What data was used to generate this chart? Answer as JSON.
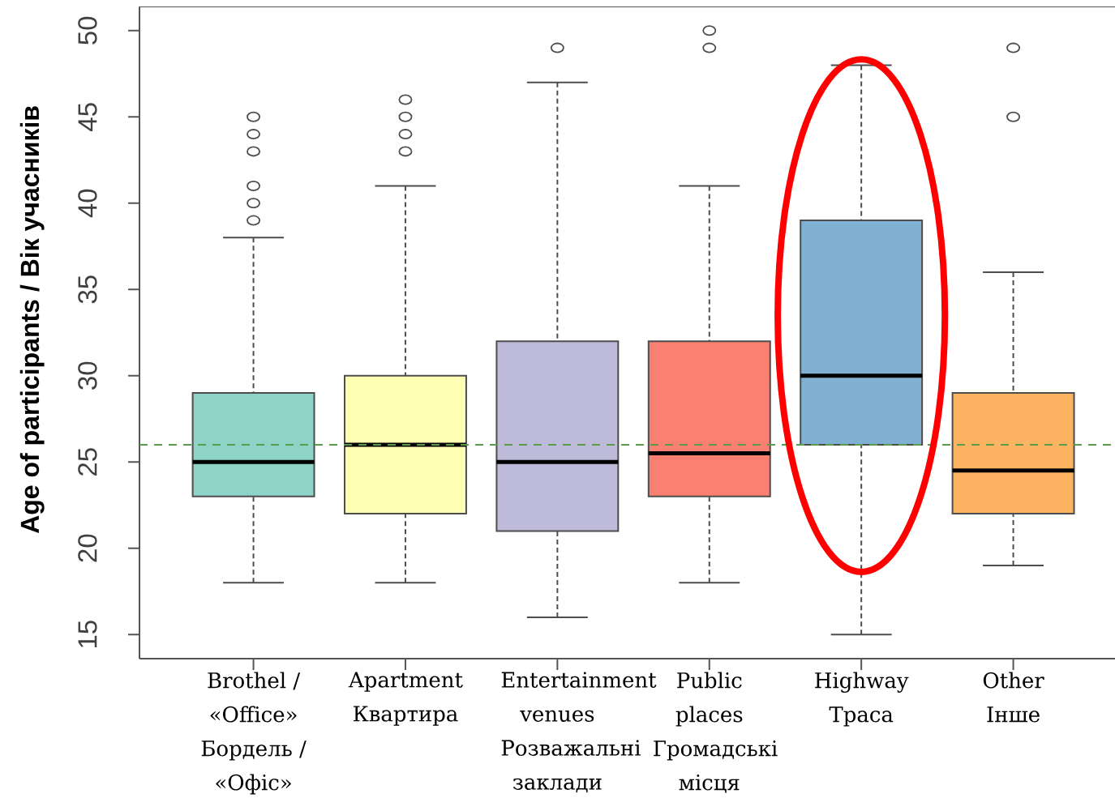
{
  "chart_data": {
    "type": "box",
    "ylabel": "Age of participants / Вік учасників",
    "categories": [
      "Brothel / «Office» Бордель / «Офіс»",
      "Apartment Квартира",
      "Entertainment venues Розважальні заклади",
      "Public places Громадські місця",
      "Highway Траса",
      "Other Інше"
    ],
    "colors": [
      "#8dd3c7",
      "#ffffb3",
      "#bebada",
      "#fb8072",
      "#80b1d3",
      "#fdb462"
    ],
    "boxes": [
      {
        "low": 18,
        "q1": 23,
        "median": 25,
        "q3": 29,
        "high": 38,
        "outliers": [
          39,
          40,
          41,
          43,
          44,
          45
        ]
      },
      {
        "low": 18,
        "q1": 22,
        "median": 26,
        "q3": 30,
        "high": 41,
        "outliers": [
          43,
          44,
          45,
          46
        ]
      },
      {
        "low": 16,
        "q1": 21,
        "median": 25,
        "q3": 32,
        "high": 47,
        "outliers": [
          49
        ]
      },
      {
        "low": 18,
        "q1": 23,
        "median": 25.5,
        "q3": 32,
        "high": 41,
        "outliers": [
          49,
          50
        ]
      },
      {
        "low": 15,
        "q1": 26,
        "median": 30,
        "q3": 39,
        "high": 48
      },
      {
        "low": 19,
        "q1": 22,
        "median": 24.5,
        "q3": 29,
        "high": 36,
        "outliers": [
          45,
          49
        ]
      }
    ],
    "ylim": [
      13.6,
      51.4
    ],
    "yticks": [
      15,
      20,
      25,
      30,
      35,
      40,
      45,
      50
    ],
    "ref_lines": [
      {
        "axis": "y",
        "value": 26,
        "color": "#5b9b4c",
        "line_style": "dashed"
      }
    ]
  }
}
